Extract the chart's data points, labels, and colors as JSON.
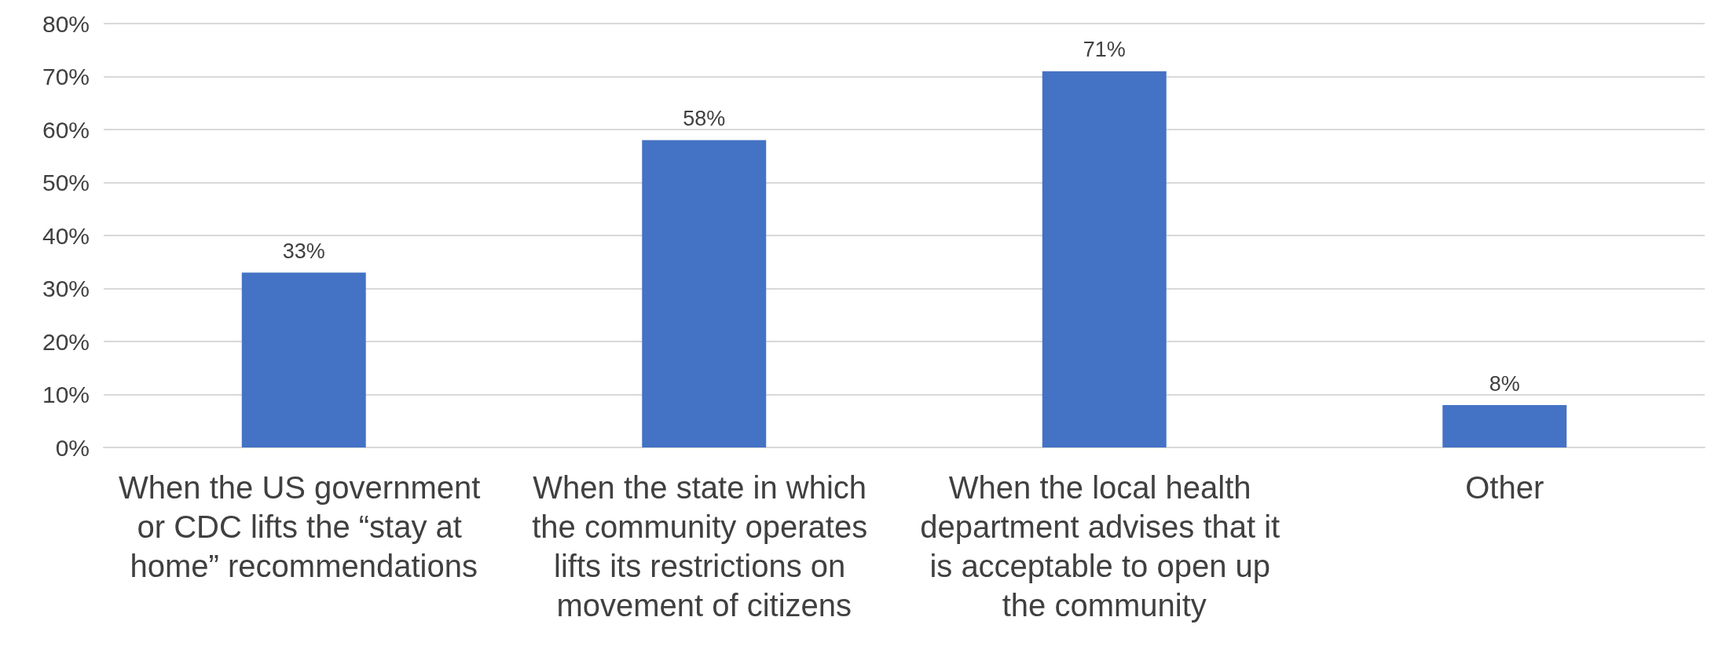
{
  "chart_data": {
    "type": "bar",
    "categories": [
      "When the US government or CDC lifts the “stay at home” recommendations",
      "When the state in which the community operates lifts its restrictions on movement of citizens",
      "When the local health department advises that it is acceptable to open up the community",
      "Other"
    ],
    "values": [
      33,
      58,
      71,
      8
    ],
    "value_labels": [
      "33%",
      "58%",
      "71%",
      "8%"
    ],
    "color": "#4472c4",
    "ylim": [
      0,
      80
    ],
    "yticks": [
      {
        "value": 0,
        "label": "0%"
      },
      {
        "value": 10,
        "label": "10%"
      },
      {
        "value": 20,
        "label": "20%"
      },
      {
        "value": 30,
        "label": "30%"
      },
      {
        "value": 40,
        "label": "40%"
      },
      {
        "value": 50,
        "label": "50%"
      },
      {
        "value": 60,
        "label": "60%"
      },
      {
        "value": 70,
        "label": "70%"
      },
      {
        "value": 80,
        "label": "80%"
      }
    ],
    "grid": "y"
  }
}
